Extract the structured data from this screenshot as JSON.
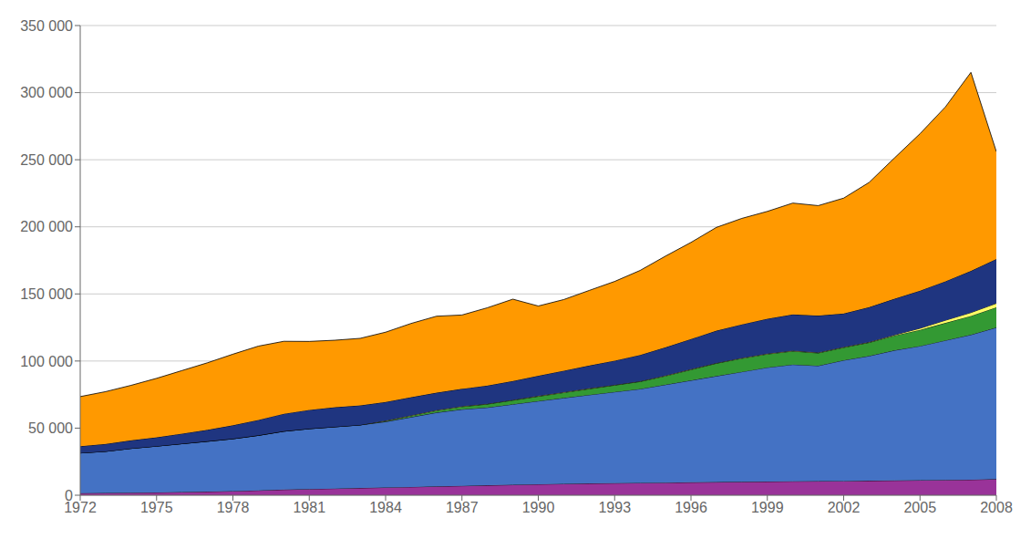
{
  "chart_data": {
    "type": "area",
    "stacked": true,
    "grid": true,
    "x": [
      1972,
      1973,
      1974,
      1975,
      1976,
      1977,
      1978,
      1979,
      1980,
      1981,
      1982,
      1983,
      1984,
      1985,
      1986,
      1987,
      1988,
      1989,
      1990,
      1991,
      1992,
      1993,
      1994,
      1995,
      1996,
      1997,
      1998,
      1999,
      2000,
      2001,
      2002,
      2003,
      2004,
      2005,
      2006,
      2007,
      2008
    ],
    "series": [
      {
        "color": "#993399",
        "values": [
          1500,
          1700,
          1900,
          2100,
          2400,
          2700,
          3100,
          3600,
          4200,
          4600,
          5000,
          5400,
          5800,
          6200,
          6600,
          7000,
          7400,
          7800,
          8200,
          8500,
          8800,
          9000,
          9200,
          9400,
          9600,
          9800,
          10000,
          10200,
          10400,
          10500,
          10600,
          10800,
          11000,
          11200,
          11400,
          11600,
          12000
        ]
      },
      {
        "color": "#4472C4",
        "values": [
          30000,
          31000,
          33000,
          34500,
          36000,
          37500,
          39000,
          41000,
          43500,
          45000,
          46000,
          47000,
          49000,
          52000,
          55000,
          57000,
          58000,
          60000,
          62000,
          64000,
          66000,
          68000,
          70000,
          73000,
          76000,
          79000,
          82000,
          85000,
          87000,
          86000,
          90000,
          93000,
          97000,
          100000,
          104000,
          108000,
          113000
        ]
      },
      {
        "color": "#339933",
        "values": [
          0,
          0,
          0,
          0,
          0,
          0,
          0,
          0,
          0,
          0,
          0,
          0,
          500,
          1000,
          1500,
          2000,
          2500,
          3000,
          3500,
          4000,
          4500,
          5000,
          5500,
          6500,
          8000,
          9500,
          10000,
          10000,
          10000,
          9500,
          9500,
          10000,
          11000,
          12000,
          13000,
          14000,
          15000
        ]
      },
      {
        "color": "#FFFF66",
        "values": [
          0,
          0,
          0,
          0,
          0,
          0,
          0,
          0,
          0,
          0,
          0,
          0,
          200,
          300,
          300,
          300,
          300,
          300,
          300,
          300,
          300,
          300,
          300,
          300,
          300,
          300,
          300,
          300,
          300,
          300,
          300,
          300,
          400,
          1200,
          2000,
          2500,
          3000
        ]
      },
      {
        "color": "#1F3580",
        "values": [
          5000,
          5500,
          6000,
          6500,
          7500,
          8500,
          10000,
          11500,
          13000,
          14000,
          14500,
          14500,
          14000,
          13500,
          13000,
          13000,
          13500,
          14000,
          15000,
          16000,
          17000,
          18000,
          19500,
          21000,
          22500,
          24000,
          25000,
          26000,
          27000,
          27500,
          25000,
          26000,
          27000,
          28000,
          29000,
          31000,
          33000
        ]
      },
      {
        "color": "#FF9900",
        "values": [
          37000,
          39000,
          41000,
          44000,
          47000,
          50000,
          53000,
          55000,
          54000,
          51000,
          50000,
          50000,
          52000,
          55000,
          57000,
          55000,
          58000,
          61000,
          52000,
          53000,
          56000,
          59000,
          63000,
          68000,
          72000,
          77000,
          79000,
          80000,
          83000,
          82000,
          86000,
          93000,
          105000,
          117000,
          130000,
          148000,
          80000
        ]
      }
    ],
    "xlim": [
      1972,
      2008
    ],
    "xticks": [
      1972,
      1975,
      1978,
      1981,
      1984,
      1987,
      1990,
      1993,
      1996,
      1999,
      2002,
      2005,
      2008
    ],
    "ylim": [
      0,
      350000
    ],
    "yticks": [
      0,
      {
        "value": 50000,
        "label": "50 000"
      },
      {
        "value": 100000,
        "label": "100 000"
      },
      {
        "value": 150000,
        "label": "150 000"
      },
      {
        "value": 200000,
        "label": "200 000"
      },
      {
        "value": 250000,
        "label": "250 000"
      },
      {
        "value": 300000,
        "label": "300 000"
      },
      {
        "value": 350000,
        "label": "350 000"
      }
    ]
  }
}
